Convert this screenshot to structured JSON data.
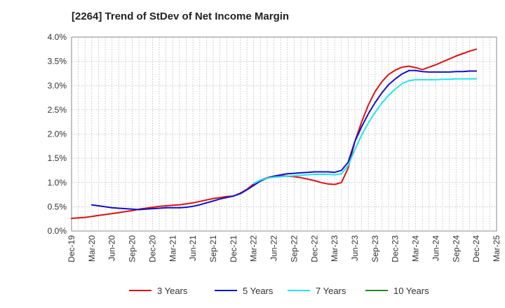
{
  "chart_data": {
    "type": "line",
    "title": "[2264]  Trend of StDev of Net Income Margin",
    "xlabel": "",
    "ylabel": "",
    "ylim": [
      0,
      4.0
    ],
    "y_ticks": [
      0,
      0.5,
      1.0,
      1.5,
      2.0,
      2.5,
      3.0,
      3.5,
      4.0
    ],
    "y_tick_labels": [
      "0.0%",
      "0.5%",
      "1.0%",
      "1.5%",
      "2.0%",
      "2.5%",
      "3.0%",
      "3.5%",
      "4.0%"
    ],
    "x_tick_labels": [
      "Dec-19",
      "Mar-20",
      "Jun-20",
      "Sep-20",
      "Dec-20",
      "Mar-21",
      "Jun-21",
      "Sep-21",
      "Dec-21",
      "Mar-22",
      "Jun-22",
      "Sep-22",
      "Dec-22",
      "Mar-23",
      "Jun-23",
      "Sep-23",
      "Dec-23",
      "Mar-24",
      "Jun-24",
      "Sep-24",
      "Dec-24",
      "Mar-25"
    ],
    "grid": true,
    "legend_position": "bottom",
    "series": [
      {
        "name": "3 Years",
        "color": "#dd1111",
        "points": [
          [
            "Dec-19",
            0.26
          ],
          [
            "Jan-20",
            0.27
          ],
          [
            "Feb-20",
            0.28
          ],
          [
            "Mar-20",
            0.3
          ],
          [
            "Apr-20",
            0.32
          ],
          [
            "May-20",
            0.34
          ],
          [
            "Jun-20",
            0.36
          ],
          [
            "Jul-20",
            0.38
          ],
          [
            "Aug-20",
            0.4
          ],
          [
            "Sep-20",
            0.42
          ],
          [
            "Oct-20",
            0.45
          ],
          [
            "Nov-20",
            0.47
          ],
          [
            "Dec-20",
            0.49
          ],
          [
            "Jan-21",
            0.51
          ],
          [
            "Feb-21",
            0.52
          ],
          [
            "Mar-21",
            0.53
          ],
          [
            "Apr-21",
            0.54
          ],
          [
            "May-21",
            0.56
          ],
          [
            "Jun-21",
            0.58
          ],
          [
            "Jul-21",
            0.61
          ],
          [
            "Aug-21",
            0.64
          ],
          [
            "Sep-21",
            0.67
          ],
          [
            "Oct-21",
            0.69
          ],
          [
            "Nov-21",
            0.71
          ],
          [
            "Dec-21",
            0.72
          ],
          [
            "Jan-22",
            0.78
          ],
          [
            "Feb-22",
            0.86
          ],
          [
            "Mar-22",
            0.97
          ],
          [
            "Apr-22",
            1.05
          ],
          [
            "May-22",
            1.1
          ],
          [
            "Jun-22",
            1.13
          ],
          [
            "Jul-22",
            1.14
          ],
          [
            "Aug-22",
            1.13
          ],
          [
            "Sep-22",
            1.12
          ],
          [
            "Oct-22",
            1.1
          ],
          [
            "Nov-22",
            1.07
          ],
          [
            "Dec-22",
            1.04
          ],
          [
            "Jan-23",
            1.0
          ],
          [
            "Feb-23",
            0.97
          ],
          [
            "Mar-23",
            0.96
          ],
          [
            "Apr-23",
            1.0
          ],
          [
            "May-23",
            1.3
          ],
          [
            "Jun-23",
            1.85
          ],
          [
            "Jul-23",
            2.25
          ],
          [
            "Aug-23",
            2.6
          ],
          [
            "Sep-23",
            2.88
          ],
          [
            "Oct-23",
            3.08
          ],
          [
            "Nov-23",
            3.23
          ],
          [
            "Dec-23",
            3.32
          ],
          [
            "Jan-24",
            3.38
          ],
          [
            "Feb-24",
            3.4
          ],
          [
            "Mar-24",
            3.37
          ],
          [
            "Apr-24",
            3.33
          ],
          [
            "May-24",
            3.38
          ],
          [
            "Jun-24",
            3.43
          ],
          [
            "Jul-24",
            3.49
          ],
          [
            "Aug-24",
            3.55
          ],
          [
            "Sep-24",
            3.61
          ],
          [
            "Oct-24",
            3.66
          ],
          [
            "Nov-24",
            3.71
          ],
          [
            "Dec-24",
            3.75
          ]
        ]
      },
      {
        "name": "5 Years",
        "color": "#1111cc",
        "points": [
          [
            "Mar-20",
            0.54
          ],
          [
            "Apr-20",
            0.52
          ],
          [
            "May-20",
            0.5
          ],
          [
            "Jun-20",
            0.48
          ],
          [
            "Jul-20",
            0.47
          ],
          [
            "Aug-20",
            0.46
          ],
          [
            "Sep-20",
            0.45
          ],
          [
            "Oct-20",
            0.44
          ],
          [
            "Nov-20",
            0.45
          ],
          [
            "Dec-20",
            0.46
          ],
          [
            "Jan-21",
            0.47
          ],
          [
            "Feb-21",
            0.48
          ],
          [
            "Mar-21",
            0.48
          ],
          [
            "Apr-21",
            0.48
          ],
          [
            "May-21",
            0.49
          ],
          [
            "Jun-21",
            0.51
          ],
          [
            "Jul-21",
            0.54
          ],
          [
            "Aug-21",
            0.58
          ],
          [
            "Sep-21",
            0.62
          ],
          [
            "Oct-21",
            0.66
          ],
          [
            "Nov-21",
            0.69
          ],
          [
            "Dec-21",
            0.72
          ],
          [
            "Jan-22",
            0.77
          ],
          [
            "Feb-22",
            0.85
          ],
          [
            "Mar-22",
            0.94
          ],
          [
            "Apr-22",
            1.03
          ],
          [
            "May-22",
            1.09
          ],
          [
            "Jun-22",
            1.13
          ],
          [
            "Jul-22",
            1.16
          ],
          [
            "Aug-22",
            1.18
          ],
          [
            "Sep-22",
            1.19
          ],
          [
            "Oct-22",
            1.2
          ],
          [
            "Nov-22",
            1.21
          ],
          [
            "Dec-22",
            1.22
          ],
          [
            "Jan-23",
            1.22
          ],
          [
            "Feb-23",
            1.22
          ],
          [
            "Mar-23",
            1.21
          ],
          [
            "Apr-23",
            1.25
          ],
          [
            "May-23",
            1.42
          ],
          [
            "Jun-23",
            1.85
          ],
          [
            "Jul-23",
            2.15
          ],
          [
            "Aug-23",
            2.42
          ],
          [
            "Sep-23",
            2.65
          ],
          [
            "Oct-23",
            2.85
          ],
          [
            "Nov-23",
            3.02
          ],
          [
            "Dec-23",
            3.14
          ],
          [
            "Jan-24",
            3.24
          ],
          [
            "Feb-24",
            3.31
          ],
          [
            "Mar-24",
            3.31
          ],
          [
            "Apr-24",
            3.29
          ],
          [
            "May-24",
            3.28
          ],
          [
            "Jun-24",
            3.28
          ],
          [
            "Jul-24",
            3.28
          ],
          [
            "Aug-24",
            3.28
          ],
          [
            "Sep-24",
            3.29
          ],
          [
            "Oct-24",
            3.29
          ],
          [
            "Nov-24",
            3.3
          ],
          [
            "Dec-24",
            3.3
          ]
        ]
      },
      {
        "name": "7 Years",
        "color": "#22e5ee",
        "points": [
          [
            "Mar-22",
            0.98
          ],
          [
            "Apr-22",
            1.05
          ],
          [
            "May-22",
            1.09
          ],
          [
            "Jun-22",
            1.11
          ],
          [
            "Jul-22",
            1.12
          ],
          [
            "Aug-22",
            1.13
          ],
          [
            "Sep-22",
            1.14
          ],
          [
            "Oct-22",
            1.15
          ],
          [
            "Nov-22",
            1.16
          ],
          [
            "Dec-22",
            1.17
          ],
          [
            "Jan-23",
            1.17
          ],
          [
            "Feb-23",
            1.17
          ],
          [
            "Mar-23",
            1.16
          ],
          [
            "Apr-23",
            1.18
          ],
          [
            "May-23",
            1.35
          ],
          [
            "Jun-23",
            1.68
          ],
          [
            "Jul-23",
            1.98
          ],
          [
            "Aug-23",
            2.23
          ],
          [
            "Sep-23",
            2.45
          ],
          [
            "Oct-23",
            2.64
          ],
          [
            "Nov-23",
            2.8
          ],
          [
            "Dec-23",
            2.93
          ],
          [
            "Jan-24",
            3.04
          ],
          [
            "Feb-24",
            3.1
          ],
          [
            "Mar-24",
            3.12
          ],
          [
            "Apr-24",
            3.12
          ],
          [
            "May-24",
            3.12
          ],
          [
            "Jun-24",
            3.12
          ],
          [
            "Jul-24",
            3.13
          ],
          [
            "Aug-24",
            3.13
          ],
          [
            "Sep-24",
            3.14
          ],
          [
            "Oct-24",
            3.14
          ],
          [
            "Nov-24",
            3.14
          ],
          [
            "Dec-24",
            3.14
          ]
        ]
      },
      {
        "name": "10 Years",
        "color": "#228822",
        "points": []
      }
    ]
  }
}
